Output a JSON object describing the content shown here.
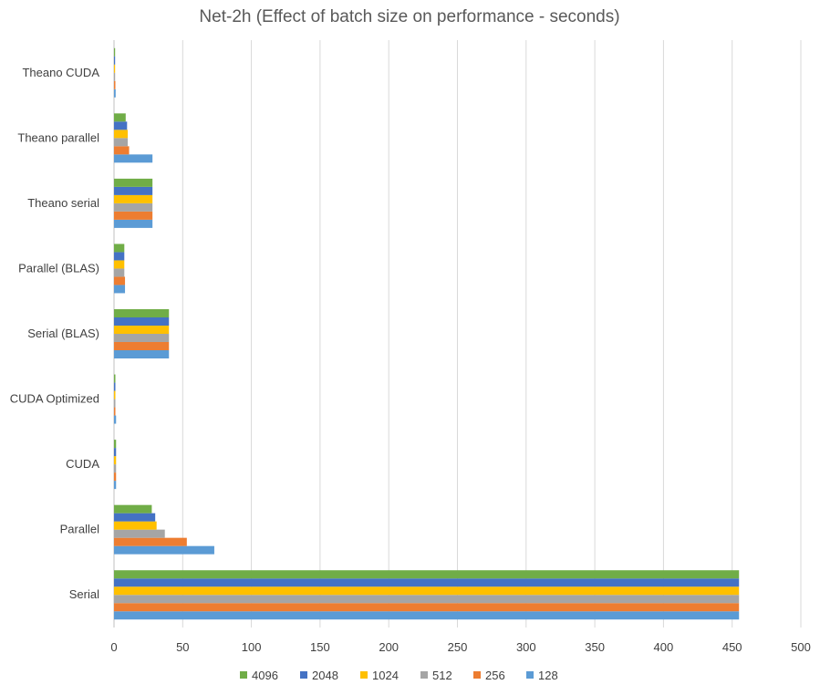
{
  "chart_data": {
    "type": "bar",
    "orientation": "horizontal",
    "title": "Net-2h (Effect of batch size on performance - seconds)",
    "xlabel": "",
    "ylabel": "",
    "xlim": [
      0,
      500
    ],
    "xticks": [
      0,
      50,
      100,
      150,
      200,
      250,
      300,
      350,
      400,
      450,
      500
    ],
    "grid": true,
    "legend_position": "bottom",
    "categories": [
      "Serial",
      "Parallel",
      "CUDA",
      "CUDA Optimized",
      "Serial (BLAS)",
      "Parallel (BLAS)",
      "Theano serial",
      "Theano parallel",
      "Theano CUDA"
    ],
    "series": [
      {
        "name": "128",
        "color": "#5B9BD5",
        "values": [
          455,
          73,
          1.5,
          1.5,
          40,
          8,
          28,
          28,
          1.2
        ]
      },
      {
        "name": "256",
        "color": "#ED7D31",
        "values": [
          455,
          53,
          1.5,
          1,
          40,
          8,
          28,
          11,
          1
        ]
      },
      {
        "name": "512",
        "color": "#A5A5A5",
        "values": [
          455,
          37,
          1.5,
          1,
          40,
          7.5,
          28,
          10,
          0.8
        ]
      },
      {
        "name": "1024",
        "color": "#FFC000",
        "values": [
          455,
          31,
          1.5,
          1,
          40,
          7.5,
          28,
          10,
          0.8
        ]
      },
      {
        "name": "2048",
        "color": "#4472C4",
        "values": [
          455,
          30,
          1.5,
          1,
          40,
          7.5,
          28,
          9.5,
          0.8
        ]
      },
      {
        "name": "4096",
        "color": "#70AD47",
        "values": [
          455,
          27.5,
          1.5,
          1,
          40,
          7.5,
          28,
          8.5,
          0.8
        ]
      }
    ]
  }
}
